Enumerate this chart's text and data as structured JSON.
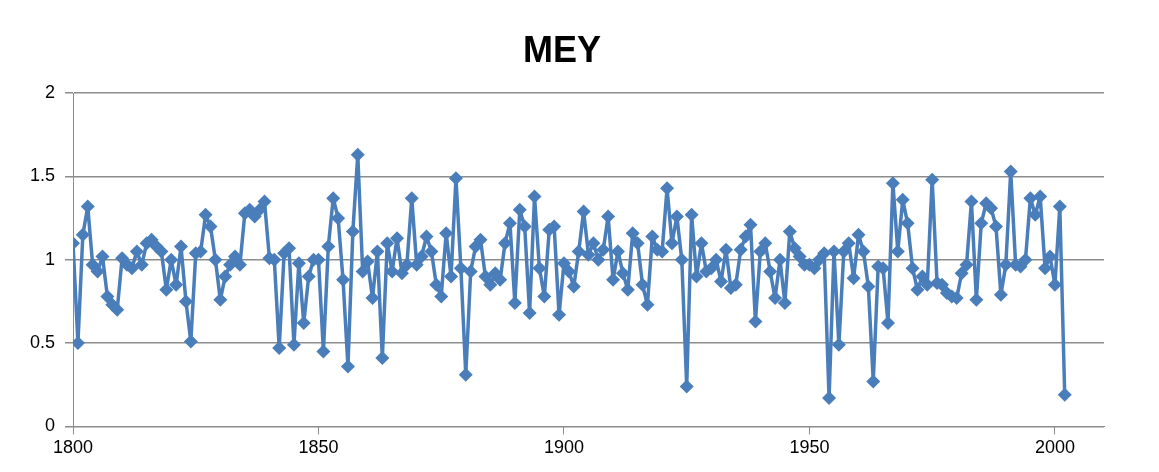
{
  "chart_data": {
    "type": "line",
    "title": "MEY",
    "x": [
      1800,
      1801,
      1802,
      1803,
      1804,
      1805,
      1806,
      1807,
      1808,
      1809,
      1810,
      1811,
      1812,
      1813,
      1814,
      1815,
      1816,
      1817,
      1818,
      1819,
      1820,
      1821,
      1822,
      1823,
      1824,
      1825,
      1826,
      1827,
      1828,
      1829,
      1830,
      1831,
      1832,
      1833,
      1834,
      1835,
      1836,
      1837,
      1838,
      1839,
      1840,
      1841,
      1842,
      1843,
      1844,
      1845,
      1846,
      1847,
      1848,
      1849,
      1850,
      1851,
      1852,
      1853,
      1854,
      1855,
      1856,
      1857,
      1858,
      1859,
      1860,
      1861,
      1862,
      1863,
      1864,
      1865,
      1866,
      1867,
      1868,
      1869,
      1870,
      1871,
      1872,
      1873,
      1874,
      1875,
      1876,
      1877,
      1878,
      1879,
      1880,
      1881,
      1882,
      1883,
      1884,
      1885,
      1886,
      1887,
      1888,
      1889,
      1890,
      1891,
      1892,
      1893,
      1894,
      1895,
      1896,
      1897,
      1898,
      1899,
      1900,
      1901,
      1902,
      1903,
      1904,
      1905,
      1906,
      1907,
      1908,
      1909,
      1910,
      1911,
      1912,
      1913,
      1914,
      1915,
      1916,
      1917,
      1918,
      1919,
      1920,
      1921,
      1922,
      1923,
      1924,
      1925,
      1926,
      1927,
      1928,
      1929,
      1930,
      1931,
      1932,
      1933,
      1934,
      1935,
      1936,
      1937,
      1938,
      1939,
      1940,
      1941,
      1942,
      1943,
      1944,
      1945,
      1946,
      1947,
      1948,
      1949,
      1950,
      1951,
      1952,
      1953,
      1954,
      1955,
      1956,
      1957,
      1958,
      1959,
      1960,
      1961,
      1962,
      1963,
      1964,
      1965,
      1966,
      1967,
      1968,
      1969,
      1970,
      1971,
      1972,
      1973,
      1974,
      1975,
      1976,
      1977,
      1978,
      1979,
      1980,
      1981,
      1982,
      1983,
      1984,
      1985,
      1986,
      1987,
      1988,
      1989,
      1990,
      1991,
      1992,
      1993,
      1994,
      1995,
      1996,
      1997,
      1998,
      1999,
      2000,
      2001,
      2002
    ],
    "series": [
      {
        "color": "#4a7ebb",
        "values": [
          1.1,
          0.5,
          1.15,
          1.32,
          0.97,
          0.93,
          1.02,
          0.78,
          0.73,
          0.7,
          1.01,
          0.97,
          0.95,
          1.05,
          0.97,
          1.1,
          1.12,
          1.08,
          1.05,
          0.82,
          1.0,
          0.85,
          1.08,
          0.75,
          0.51,
          1.04,
          1.05,
          1.27,
          1.2,
          1.0,
          0.76,
          0.9,
          0.97,
          1.02,
          0.97,
          1.28,
          1.3,
          1.26,
          1.3,
          1.35,
          1.01,
          1.0,
          0.47,
          1.04,
          1.07,
          0.49,
          0.98,
          0.62,
          0.9,
          1.0,
          1.0,
          0.45,
          1.08,
          1.37,
          1.25,
          0.88,
          0.36,
          1.17,
          1.63,
          0.93,
          0.99,
          0.77,
          1.05,
          0.41,
          1.1,
          0.93,
          1.13,
          0.92,
          0.97,
          1.37,
          0.97,
          1.02,
          1.14,
          1.05,
          0.85,
          0.78,
          1.16,
          0.9,
          1.49,
          0.95,
          0.31,
          0.93,
          1.08,
          1.12,
          0.9,
          0.85,
          0.92,
          0.88,
          1.1,
          1.22,
          0.74,
          1.3,
          1.2,
          0.68,
          1.38,
          0.95,
          0.78,
          1.18,
          1.2,
          0.67,
          0.98,
          0.93,
          0.84,
          1.05,
          1.29,
          1.03,
          1.1,
          1.0,
          1.06,
          1.26,
          0.88,
          1.05,
          0.92,
          0.82,
          1.16,
          1.1,
          0.85,
          0.73,
          1.14,
          1.06,
          1.05,
          1.43,
          1.1,
          1.26,
          1.0,
          0.24,
          1.27,
          0.9,
          1.1,
          0.93,
          0.95,
          1.0,
          0.87,
          1.06,
          0.83,
          0.85,
          1.06,
          1.14,
          1.21,
          0.63,
          1.05,
          1.1,
          0.93,
          0.77,
          1.0,
          0.74,
          1.17,
          1.07,
          1.02,
          0.97,
          0.97,
          0.95,
          1.0,
          1.04,
          0.17,
          1.05,
          0.49,
          1.05,
          1.1,
          0.89,
          1.15,
          1.05,
          0.84,
          0.27,
          0.96,
          0.95,
          0.62,
          1.46,
          1.05,
          1.36,
          1.22,
          0.95,
          0.82,
          0.9,
          0.85,
          1.48,
          0.86,
          0.85,
          0.8,
          0.78,
          0.77,
          0.92,
          0.97,
          1.35,
          0.76,
          1.22,
          1.34,
          1.31,
          1.2,
          0.79,
          0.97,
          1.53,
          0.97,
          0.96,
          1.0,
          1.37,
          1.27,
          1.38,
          0.95,
          1.02,
          0.85,
          1.32,
          0.19
        ]
      }
    ],
    "xlim": [
      1800,
      2010
    ],
    "xticks": [
      1800,
      1850,
      1900,
      1950,
      2000
    ],
    "ylim": [
      0,
      2
    ],
    "yticks": [
      0,
      0.5,
      1,
      1.5,
      2
    ],
    "grid": "y",
    "marker": "diamond",
    "line_style": "solid",
    "legend": false
  }
}
